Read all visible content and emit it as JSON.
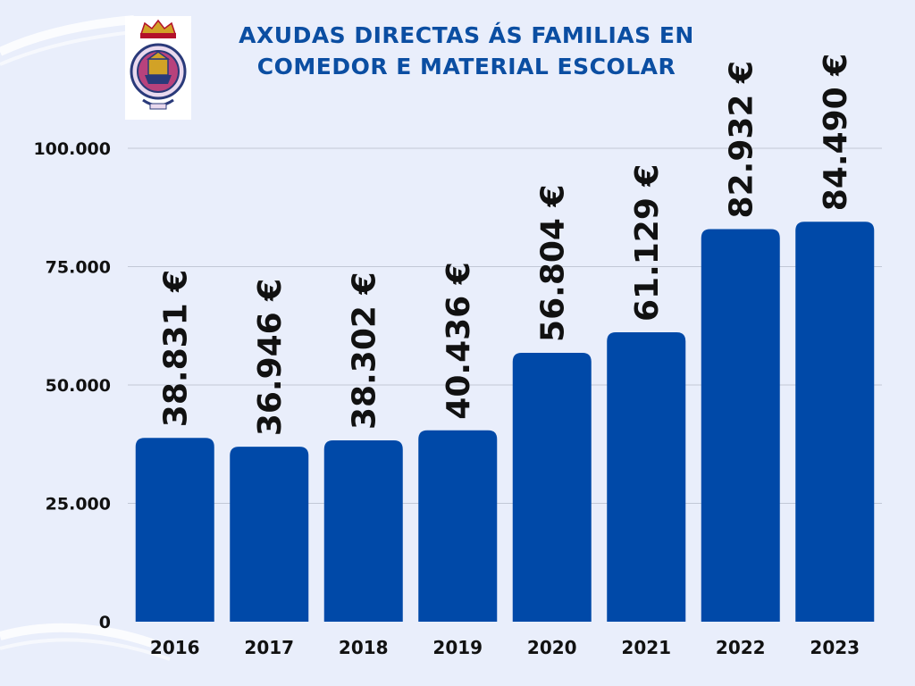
{
  "title_lines": [
    "AXUDAS DIRECTAS ÁS FAMILIAS EN",
    "COMEDOR E MATERIAL ESCOLAR"
  ],
  "logo": {
    "icon": "municipal-coat-of-arms-icon"
  },
  "colors": {
    "background": "#e9eefb",
    "bar": "#0049a8",
    "title": "#0b4ea2",
    "grid": "#c2c8d6"
  },
  "chart_data": {
    "type": "bar",
    "categories": [
      "2016",
      "2017",
      "2018",
      "2019",
      "2020",
      "2021",
      "2022",
      "2023"
    ],
    "values": [
      38831,
      36946,
      38302,
      40436,
      56804,
      61129,
      82932,
      84490
    ],
    "data_labels": [
      "38.831 €",
      "36.946 €",
      "38.302 €",
      "40.436 €",
      "56.804 €",
      "61.129 €",
      "82.932 €",
      "84.490 €"
    ],
    "y_ticks": [
      0,
      25000,
      50000,
      75000,
      100000
    ],
    "y_tick_labels": [
      "0",
      "25.000",
      "50.000",
      "75.000",
      "100.000"
    ],
    "ylim": [
      0,
      100000
    ],
    "grid": true,
    "legend": "none"
  }
}
